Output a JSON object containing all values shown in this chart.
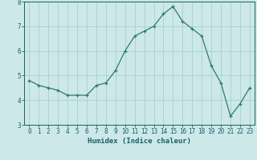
{
  "x": [
    0,
    1,
    2,
    3,
    4,
    5,
    6,
    7,
    8,
    9,
    10,
    11,
    12,
    13,
    14,
    15,
    16,
    17,
    18,
    19,
    20,
    21,
    22,
    23
  ],
  "y": [
    4.8,
    4.6,
    4.5,
    4.4,
    4.2,
    4.2,
    4.2,
    4.6,
    4.7,
    5.2,
    6.0,
    6.6,
    6.8,
    7.0,
    7.5,
    7.8,
    7.2,
    6.9,
    6.6,
    5.4,
    4.7,
    3.35,
    3.85,
    4.5
  ],
  "line_color": "#2d7a6e",
  "marker": "+",
  "marker_size": 3,
  "bg_color": "#cce8e8",
  "grid_color": "#aad0d0",
  "xlabel": "Humidex (Indice chaleur)",
  "xlim": [
    -0.5,
    23.5
  ],
  "ylim": [
    3,
    8
  ],
  "yticks": [
    3,
    4,
    5,
    6,
    7,
    8
  ],
  "xticks": [
    0,
    1,
    2,
    3,
    4,
    5,
    6,
    7,
    8,
    9,
    10,
    11,
    12,
    13,
    14,
    15,
    16,
    17,
    18,
    19,
    20,
    21,
    22,
    23
  ],
  "tick_color": "#1a5f6a",
  "label_fontsize": 5.5,
  "axis_fontsize": 6.5
}
